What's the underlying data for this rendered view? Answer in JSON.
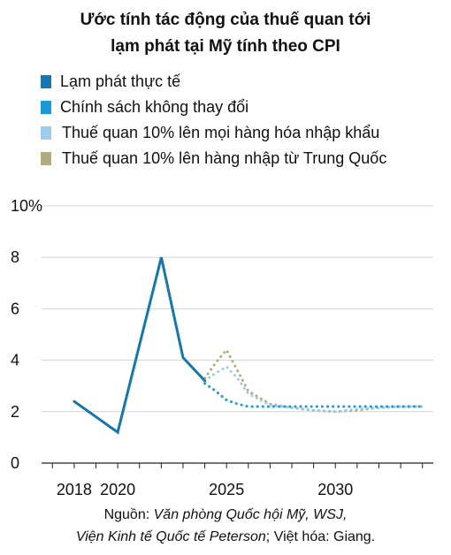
{
  "title_line1": "Ước tính tác động của thuế quan tới",
  "title_line2": "lạm phát tại Mỹ tính theo CPI",
  "source_line1": {
    "prefix": "Nguồn: ",
    "italic": "Văn phòng Quốc hội Mỹ, WSJ,"
  },
  "source_line2": {
    "italic": "Viện Kinh tế Quốc tế Peterson",
    "suffix": "; Việt hóa: Giang."
  },
  "chart_data": {
    "type": "line",
    "title": "Ước tính tác động của thuế quan tới lạm phát tại Mỹ tính theo CPI",
    "xlim": [
      2016.5,
      2034.5
    ],
    "ylim": [
      0,
      10
    ],
    "y_ticks": [
      0,
      2,
      4,
      6,
      8,
      10
    ],
    "y_tick_labels": [
      "0",
      "2",
      "4",
      "6",
      "8",
      "10%"
    ],
    "x_ticks": [
      2018,
      2020,
      2025,
      2030
    ],
    "x_tick_labels": [
      "2018",
      "2020",
      "2025",
      "2030"
    ],
    "grid": "horizontal",
    "legend_position": "top-left",
    "series": [
      {
        "name": "Lạm phát thực tế",
        "color": "#1577ad",
        "style": "solid",
        "x": [
          2018,
          2020,
          2022,
          2023,
          2024
        ],
        "y": [
          2.4,
          1.2,
          8.0,
          4.1,
          3.2
        ]
      },
      {
        "name": "Chính sách không thay đổi",
        "color": "#1a9ad6",
        "style": "dotted",
        "x": [
          2024,
          2024.5,
          2025,
          2025.5,
          2026,
          2027,
          2028,
          2029,
          2030,
          2031,
          2032,
          2033,
          2034
        ],
        "y": [
          3.1,
          2.8,
          2.45,
          2.3,
          2.2,
          2.2,
          2.2,
          2.2,
          2.2,
          2.2,
          2.2,
          2.2,
          2.2
        ]
      },
      {
        "name": "Thuế quan 10% lên mọi hàng hóa nhập khẩu",
        "color": "#9ccbee",
        "style": "dotted",
        "x": [
          2024,
          2024.5,
          2025,
          2025.5,
          2026,
          2027,
          2028,
          2029,
          2030,
          2031,
          2032,
          2033,
          2034
        ],
        "y": [
          3.2,
          3.5,
          3.75,
          3.3,
          2.7,
          2.25,
          2.15,
          2.05,
          2.0,
          2.1,
          2.15,
          2.2,
          2.2
        ]
      },
      {
        "name": "Thuế quan 10% lên hàng nhập từ Trung Quốc",
        "color": "#b2ab80",
        "style": "dotted",
        "x": [
          2024,
          2024.5,
          2025,
          2025.5,
          2026,
          2027,
          2028,
          2029,
          2030,
          2031,
          2032,
          2033,
          2034
        ],
        "y": [
          3.3,
          3.9,
          4.4,
          3.6,
          2.8,
          2.3,
          2.15,
          2.05,
          2.0,
          2.05,
          2.15,
          2.2,
          2.2
        ]
      }
    ]
  }
}
